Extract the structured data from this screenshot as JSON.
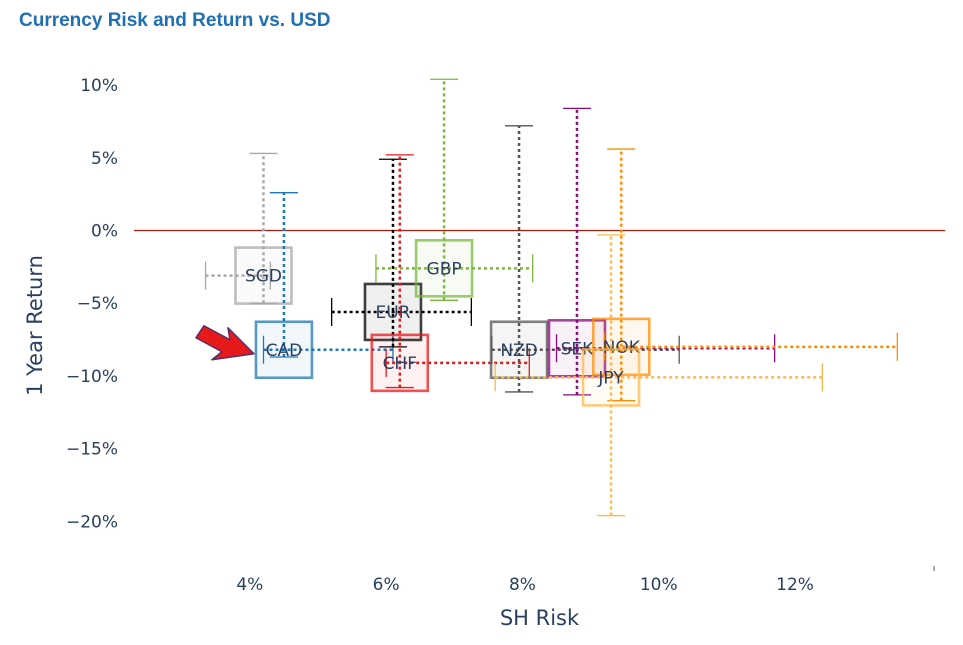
{
  "title": "Currency Risk and Return vs. USD",
  "chart_data": {
    "type": "scatter",
    "title": "Currency Risk and Return vs. USD",
    "xlabel": "SH Risk",
    "ylabel": "1 Year Return",
    "xlim": [
      2.3,
      14.2
    ],
    "ylim": [
      -23.0,
      12.0
    ],
    "x_ticks": [
      4,
      6,
      8,
      10,
      12
    ],
    "x_tick_labels": [
      "4%",
      "6%",
      "8%",
      "10%",
      "12%"
    ],
    "y_ticks": [
      10,
      5,
      0,
      -5,
      -10,
      -15,
      -20
    ],
    "y_tick_labels": [
      "10%",
      "5%",
      "0%",
      "−5%",
      "−10%",
      "−15%",
      "−20%"
    ],
    "zero_line": {
      "y": 0,
      "color": "#aa1c0d"
    },
    "grid": false,
    "highlight_arrow_target": "CAD",
    "series": [
      {
        "name": "SGD",
        "x": 4.2,
        "y": -3.1,
        "x_range": [
          3.35,
          4.3
        ],
        "y_range": [
          -5.0,
          5.3
        ],
        "color": "#a8a8a8"
      },
      {
        "name": "CAD",
        "x": 4.5,
        "y": -8.2,
        "x_range": [
          4.2,
          6.1
        ],
        "y_range": [
          -8.7,
          2.6
        ],
        "color": "#1f77b4"
      },
      {
        "name": "EUR",
        "x": 6.1,
        "y": -5.6,
        "x_range": [
          5.2,
          7.25
        ],
        "y_range": [
          -8.0,
          4.9
        ],
        "color": "#000000"
      },
      {
        "name": "CHF",
        "x": 6.2,
        "y": -9.1,
        "x_range": [
          6.0,
          8.1
        ],
        "y_range": [
          -10.8,
          5.2
        ],
        "color": "#e8191b"
      },
      {
        "name": "GBP",
        "x": 6.85,
        "y": -2.6,
        "x_range": [
          5.85,
          8.15
        ],
        "y_range": [
          -4.8,
          10.4
        ],
        "color": "#7ab83b"
      },
      {
        "name": "NZD",
        "x": 7.95,
        "y": -8.2,
        "x_range": [
          7.55,
          10.3
        ],
        "y_range": [
          -11.1,
          7.2
        ],
        "color": "#555555"
      },
      {
        "name": "SEK",
        "x": 8.8,
        "y": -8.1,
        "x_range": [
          8.5,
          11.7
        ],
        "y_range": [
          -11.3,
          8.4
        ],
        "color": "#8b0a7e"
      },
      {
        "name": "NOK",
        "x": 9.45,
        "y": -8.0,
        "x_range": [
          9.2,
          13.5
        ],
        "y_range": [
          -11.7,
          5.6
        ],
        "color": "#ff8c00"
      },
      {
        "name": "JPY",
        "x": 9.3,
        "y": -10.1,
        "x_range": [
          7.6,
          12.4
        ],
        "y_range": [
          -19.6,
          -0.3
        ],
        "color": "#fdb84e"
      }
    ]
  }
}
